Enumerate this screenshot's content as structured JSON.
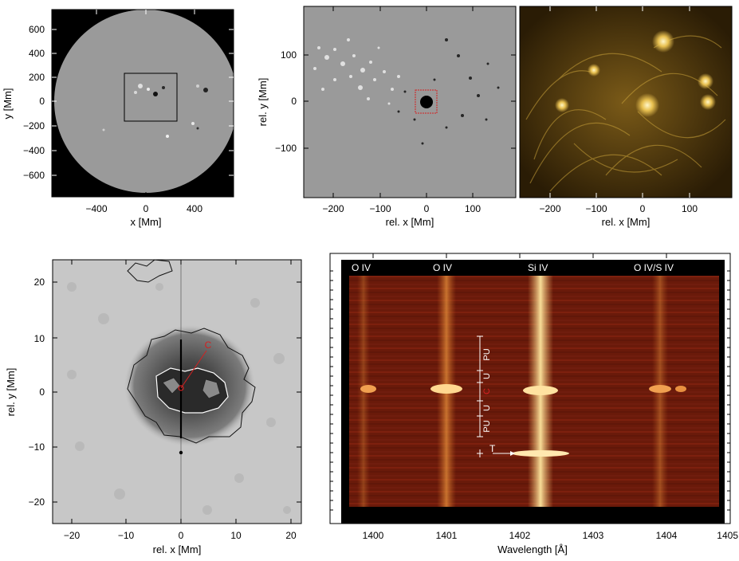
{
  "panels": {
    "full_disk": {
      "xlabel": "x [Mm]",
      "ylabel": "y [Mm]",
      "xticks": [
        "−400",
        "0",
        "400"
      ],
      "yticks": [
        "600",
        "400",
        "200",
        "0",
        "−200",
        "−400",
        "−600"
      ]
    },
    "magnetogram": {
      "xlabel": "rel. x [Mm]",
      "ylabel": "rel. y [Mm]",
      "xticks": [
        "−200",
        "−100",
        "0",
        "100"
      ],
      "yticks": [
        "100",
        "0",
        "−100"
      ]
    },
    "aia": {
      "xlabel": "rel. x [Mm]",
      "xticks": [
        "−200",
        "−100",
        "0",
        "100"
      ]
    },
    "sunspot": {
      "xlabel": "rel. x [Mm]",
      "ylabel": "rel. y [Mm]",
      "xticks": [
        "−20",
        "−10",
        "0",
        "10",
        "20"
      ],
      "yticks": [
        "20",
        "10",
        "0",
        "−10",
        "−20"
      ],
      "marker_label": "C"
    },
    "spectrum": {
      "xlabel": "Wavelength [Å]",
      "xticks": [
        "1400",
        "1401",
        "1402",
        "1403",
        "1404",
        "1405"
      ],
      "line_labels": [
        "O IV",
        "O IV",
        "Si IV",
        "O IV/S IV"
      ],
      "region_labels": [
        "PU",
        "U",
        "C",
        "U",
        "PU"
      ],
      "transient_label": "T"
    }
  },
  "colors": {
    "accent_red": "#d42020",
    "disk_gray": "#9a9a9a",
    "aia_gold": "#c9a23a",
    "spectrum_red": "#7a1a0a"
  }
}
